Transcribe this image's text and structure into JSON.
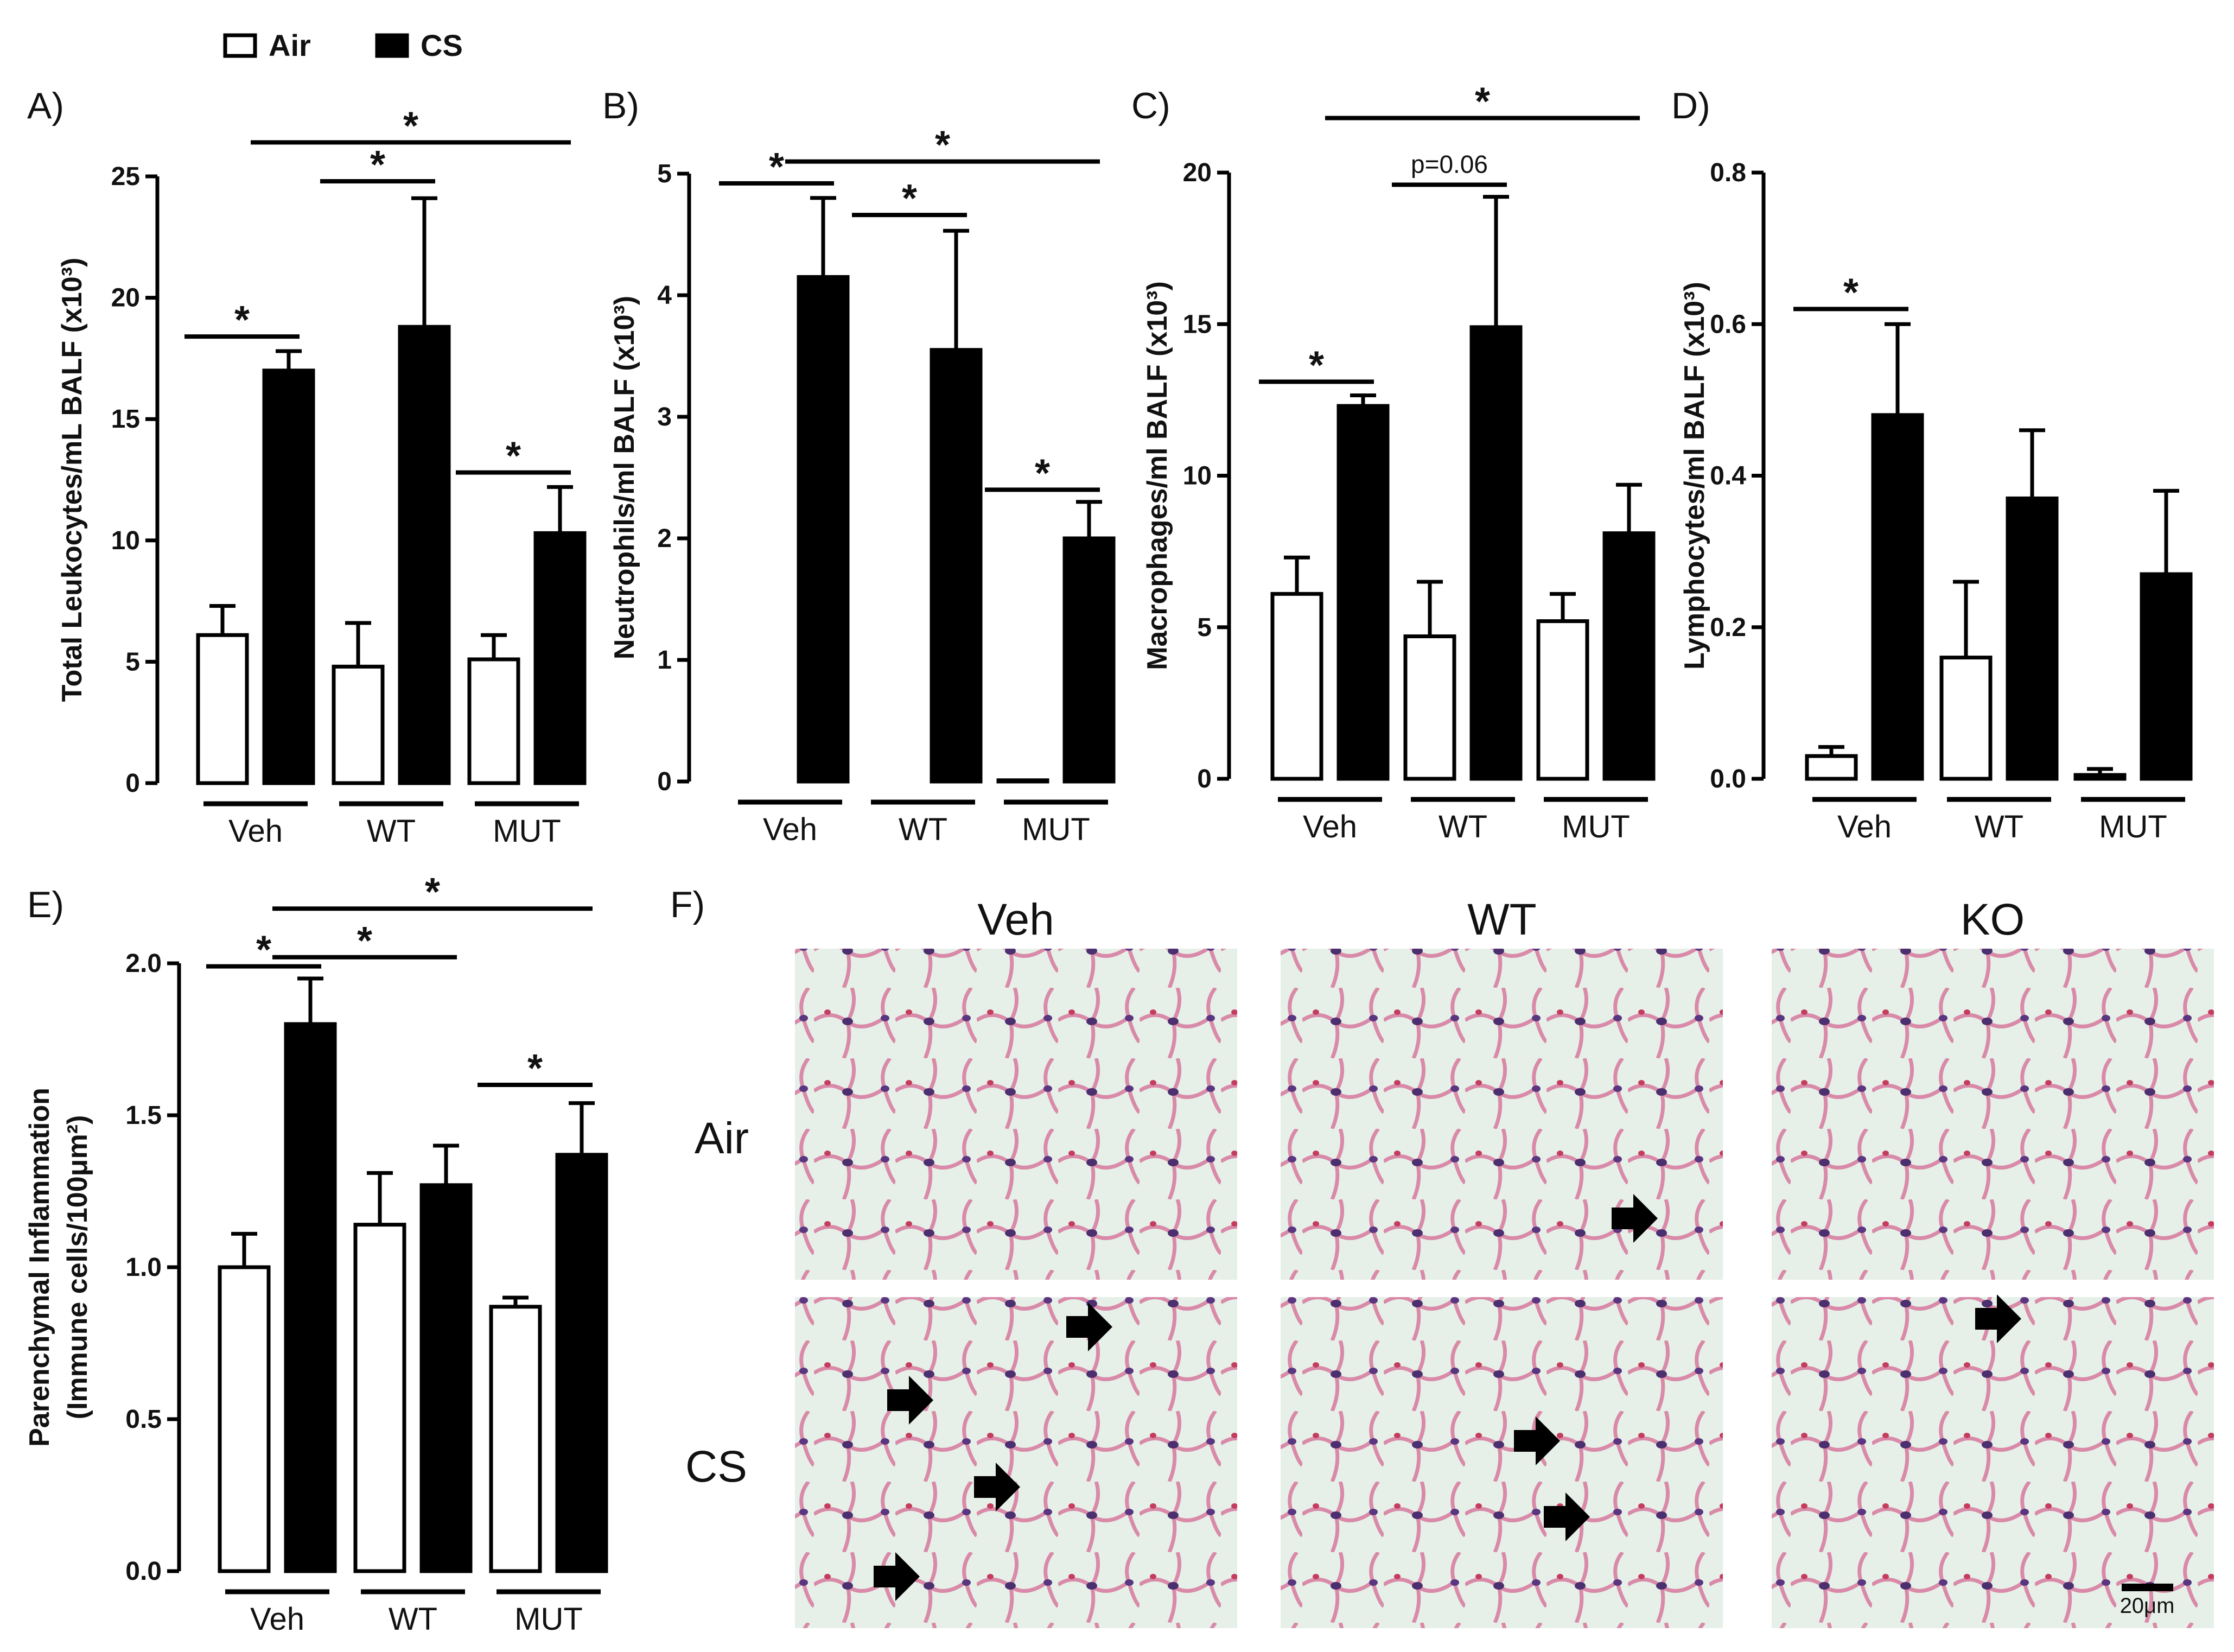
{
  "legend": {
    "air_label": "Air",
    "cs_label": "CS",
    "air_color": "#ffffff",
    "cs_color": "#000000"
  },
  "panel_labels": [
    "A)",
    "B)",
    "C)",
    "D)",
    "E)",
    "F)"
  ],
  "chart_data": [
    {
      "type": "bar",
      "panel": "A)",
      "ylabel": "Total Leukocytes/mL BALF (x10³)",
      "categories": [
        "Veh",
        "WT",
        "MUT"
      ],
      "ylim": [
        0,
        25
      ],
      "yticks": [
        "0",
        "5",
        "10",
        "15",
        "20",
        "25"
      ],
      "series": [
        {
          "name": "Air",
          "values": [
            6.1,
            4.8,
            5.1
          ],
          "errors": [
            1.2,
            1.8,
            1.0
          ]
        },
        {
          "name": "CS",
          "values": [
            17.0,
            18.8,
            10.3
          ],
          "errors": [
            0.8,
            5.3,
            1.9
          ]
        }
      ],
      "significance": [
        {
          "from": [
            0,
            "air"
          ],
          "to": [
            0,
            "cs"
          ],
          "y": 18.4,
          "label": "*"
        },
        {
          "from": [
            1,
            "air"
          ],
          "to": [
            1,
            "cs"
          ],
          "y": 24.8,
          "label": "*"
        },
        {
          "from": [
            2,
            "air"
          ],
          "to": [
            2,
            "cs"
          ],
          "y": 12.8,
          "label": "*"
        },
        {
          "from": [
            0,
            "cs"
          ],
          "to": [
            2,
            "cs"
          ],
          "y": 26.4,
          "label": "*"
        }
      ]
    },
    {
      "type": "bar",
      "panel": "B)",
      "ylabel": "Neutrophils/ml BALF (x10³)",
      "categories": [
        "Veh",
        "WT",
        "MUT"
      ],
      "ylim": [
        0,
        5
      ],
      "yticks": [
        "0",
        "1",
        "2",
        "3",
        "4",
        "5"
      ],
      "series": [
        {
          "name": "Air",
          "values": [
            0.0,
            0.0,
            0.01
          ],
          "errors": [
            0,
            0,
            0
          ]
        },
        {
          "name": "CS",
          "values": [
            4.15,
            3.55,
            2.0
          ],
          "errors": [
            0.65,
            0.98,
            0.3
          ]
        }
      ],
      "significance": [
        {
          "from": [
            0,
            "air"
          ],
          "to": [
            0,
            "cs"
          ],
          "y": 4.92,
          "label": "*"
        },
        {
          "from": [
            1,
            "air"
          ],
          "to": [
            1,
            "cs"
          ],
          "y": 4.66,
          "label": "*"
        },
        {
          "from": [
            2,
            "air"
          ],
          "to": [
            2,
            "cs"
          ],
          "y": 2.4,
          "label": "*"
        },
        {
          "from": [
            0,
            "cs"
          ],
          "to": [
            2,
            "cs"
          ],
          "y": 5.1,
          "label": "*"
        }
      ]
    },
    {
      "type": "bar",
      "panel": "C)",
      "ylabel": "Macrophages/ml BALF (x10³)",
      "categories": [
        "Veh",
        "WT",
        "MUT"
      ],
      "ylim": [
        0,
        20
      ],
      "yticks": [
        "0",
        "5",
        "10",
        "15",
        "20"
      ],
      "series": [
        {
          "name": "Air",
          "values": [
            6.1,
            4.7,
            5.2
          ],
          "errors": [
            1.2,
            1.8,
            0.9
          ]
        },
        {
          "name": "CS",
          "values": [
            12.3,
            14.9,
            8.1
          ],
          "errors": [
            0.35,
            4.3,
            1.6
          ]
        }
      ],
      "significance": [
        {
          "from": [
            0,
            "air"
          ],
          "to": [
            0,
            "cs"
          ],
          "y": 13.1,
          "label": "*"
        },
        {
          "from": [
            1,
            "air"
          ],
          "to": [
            1,
            "cs"
          ],
          "y": 19.6,
          "label": "p=0.06"
        },
        {
          "from": [
            0,
            "cs"
          ],
          "to": [
            2,
            "cs"
          ],
          "y": 21.8,
          "label": "*"
        }
      ]
    },
    {
      "type": "bar",
      "panel": "D)",
      "ylabel": "Lymphocytes/ml BALF (x10³)",
      "categories": [
        "Veh",
        "WT",
        "MUT"
      ],
      "ylim": [
        0,
        0.8
      ],
      "yticks": [
        "0.0",
        "0.2",
        "0.4",
        "0.6",
        "0.8"
      ],
      "series": [
        {
          "name": "Air",
          "values": [
            0.03,
            0.16,
            0.005
          ],
          "errors": [
            0.012,
            0.1,
            0.008
          ]
        },
        {
          "name": "CS",
          "values": [
            0.48,
            0.37,
            0.27
          ],
          "errors": [
            0.12,
            0.09,
            0.11
          ]
        }
      ],
      "significance": [
        {
          "from": [
            0,
            "air"
          ],
          "to": [
            0,
            "cs"
          ],
          "y": 0.62,
          "label": "*"
        }
      ]
    },
    {
      "type": "bar",
      "panel": "E)",
      "ylabel": "Parenchymal Inflammation",
      "ylabel2": "(Immune cells/100μm²)",
      "categories": [
        "Veh",
        "WT",
        "MUT"
      ],
      "ylim": [
        0,
        2.0
      ],
      "yticks": [
        "0.0",
        "0.5",
        "1.0",
        "1.5",
        "2.0"
      ],
      "series": [
        {
          "name": "Air",
          "values": [
            1.0,
            1.14,
            0.87
          ],
          "errors": [
            0.11,
            0.17,
            0.03
          ]
        },
        {
          "name": "CS",
          "values": [
            1.8,
            1.27,
            1.37
          ],
          "errors": [
            0.15,
            0.13,
            0.17
          ]
        }
      ],
      "significance": [
        {
          "from": [
            0,
            "air"
          ],
          "to": [
            0,
            "cs"
          ],
          "y": 1.99,
          "label": "*"
        },
        {
          "from": [
            0,
            "cs"
          ],
          "to": [
            1,
            "cs"
          ],
          "y": 2.02,
          "label": "*"
        },
        {
          "from": [
            2,
            "air"
          ],
          "to": [
            2,
            "cs"
          ],
          "y": 1.6,
          "label": "*"
        },
        {
          "from": [
            0,
            "cs"
          ],
          "to": [
            2,
            "cs"
          ],
          "y": 2.18,
          "label": "*"
        }
      ]
    }
  ],
  "histology": {
    "columns": [
      "Veh",
      "WT",
      "KO"
    ],
    "rows": [
      "Air",
      "CS"
    ],
    "scale_bar": "20μm"
  }
}
